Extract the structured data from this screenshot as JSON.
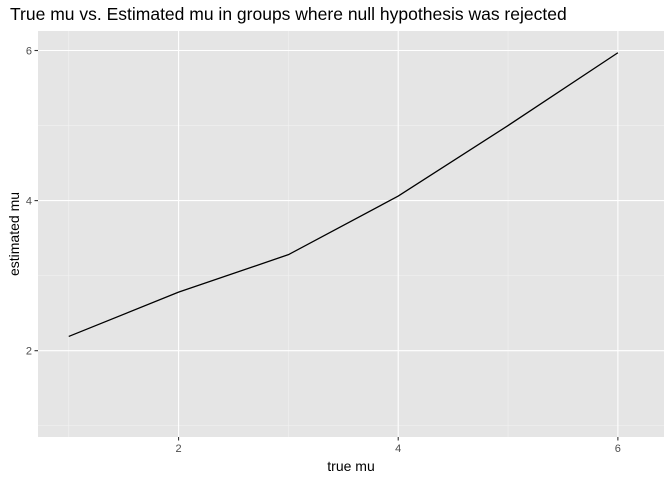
{
  "chart_data": {
    "type": "line",
    "title": "True mu vs. Estimated mu in groups where null hypothesis was rejected",
    "xlabel": "true mu",
    "ylabel": "estimated mu",
    "x": [
      1,
      2,
      3,
      4,
      5,
      6
    ],
    "series": [
      {
        "values": [
          2.19,
          2.78,
          3.28,
          4.06,
          5.0,
          5.97
        ]
      }
    ],
    "xlim": [
      0.72,
      6.42
    ],
    "ylim": [
      0.85,
      6.26
    ],
    "xticks": [
      2,
      4,
      6
    ],
    "yticks": [
      2,
      4,
      6
    ],
    "xtick_labels": [
      "2",
      "4",
      "6"
    ],
    "ytick_labels": [
      "2",
      "4",
      "6"
    ],
    "grid": true,
    "legend": "none",
    "colors": {
      "panel_background": "#e5e5e5",
      "grid_major": "#ffffff",
      "grid_minor": "#f2f2f2",
      "line": "#000000",
      "tick_label": "#4d4d4d",
      "tick_mark": "#333333"
    }
  }
}
